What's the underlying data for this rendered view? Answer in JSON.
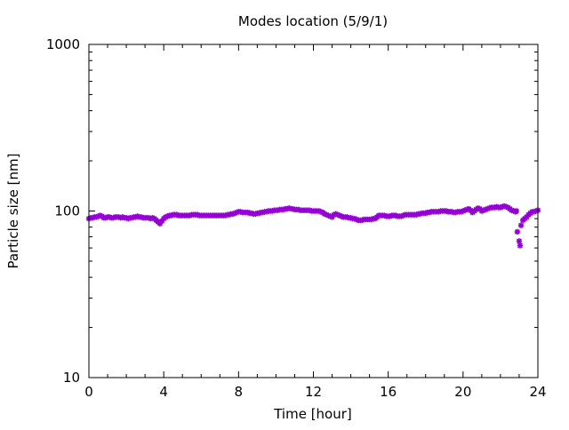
{
  "chart_data": {
    "type": "scatter",
    "title": "Modes location (5/9/1)",
    "xlabel": "Time [hour]",
    "ylabel": "Particle size [nm]",
    "xlim": [
      0,
      24
    ],
    "ylim": [
      10,
      1000
    ],
    "y_scale": "log",
    "x_ticks": [
      0,
      4,
      8,
      12,
      16,
      20,
      24
    ],
    "x_tick_labels": [
      "0",
      "4",
      "8",
      "12",
      "16",
      "20",
      "24"
    ],
    "y_ticks": [
      10,
      100,
      1000
    ],
    "y_tick_labels": [
      "10",
      "100",
      "1000"
    ],
    "grid": false,
    "legend": "none",
    "marker_color": "#9400d3",
    "series": [
      {
        "points": [
          [
            0.0,
            90
          ],
          [
            0.1,
            91
          ],
          [
            0.2,
            91
          ],
          [
            0.3,
            92
          ],
          [
            0.4,
            92
          ],
          [
            0.5,
            93
          ],
          [
            0.6,
            94
          ],
          [
            0.7,
            93
          ],
          [
            0.8,
            91
          ],
          [
            0.9,
            91
          ],
          [
            1.0,
            92
          ],
          [
            1.1,
            92
          ],
          [
            1.2,
            91
          ],
          [
            1.3,
            91
          ],
          [
            1.4,
            92
          ],
          [
            1.5,
            92
          ],
          [
            1.6,
            92
          ],
          [
            1.7,
            91
          ],
          [
            1.8,
            92
          ],
          [
            1.9,
            91
          ],
          [
            2.0,
            91
          ],
          [
            2.1,
            90
          ],
          [
            2.2,
            91
          ],
          [
            2.3,
            91
          ],
          [
            2.4,
            92
          ],
          [
            2.5,
            92
          ],
          [
            2.6,
            93
          ],
          [
            2.7,
            92
          ],
          [
            2.8,
            92
          ],
          [
            2.9,
            91
          ],
          [
            3.0,
            91
          ],
          [
            3.1,
            91
          ],
          [
            3.2,
            91
          ],
          [
            3.3,
            90
          ],
          [
            3.4,
            91
          ],
          [
            3.5,
            90
          ],
          [
            3.6,
            88
          ],
          [
            3.7,
            86
          ],
          [
            3.8,
            84
          ],
          [
            3.9,
            87
          ],
          [
            4.0,
            90
          ],
          [
            4.1,
            92
          ],
          [
            4.2,
            93
          ],
          [
            4.3,
            94
          ],
          [
            4.4,
            94
          ],
          [
            4.5,
            95
          ],
          [
            4.6,
            95
          ],
          [
            4.7,
            95
          ],
          [
            4.8,
            94
          ],
          [
            4.9,
            94
          ],
          [
            5.0,
            94
          ],
          [
            5.1,
            94
          ],
          [
            5.2,
            94
          ],
          [
            5.3,
            94
          ],
          [
            5.4,
            94
          ],
          [
            5.5,
            95
          ],
          [
            5.6,
            95
          ],
          [
            5.7,
            95
          ],
          [
            5.8,
            95
          ],
          [
            5.9,
            94
          ],
          [
            6.0,
            94
          ],
          [
            6.1,
            94
          ],
          [
            6.2,
            94
          ],
          [
            6.3,
            94
          ],
          [
            6.4,
            94
          ],
          [
            6.5,
            94
          ],
          [
            6.6,
            94
          ],
          [
            6.7,
            94
          ],
          [
            6.8,
            94
          ],
          [
            6.9,
            94
          ],
          [
            7.0,
            94
          ],
          [
            7.1,
            94
          ],
          [
            7.2,
            94
          ],
          [
            7.3,
            94
          ],
          [
            7.4,
            95
          ],
          [
            7.5,
            95
          ],
          [
            7.6,
            96
          ],
          [
            7.7,
            96
          ],
          [
            7.8,
            97
          ],
          [
            7.9,
            98
          ],
          [
            8.0,
            99
          ],
          [
            8.1,
            99
          ],
          [
            8.2,
            98
          ],
          [
            8.3,
            98
          ],
          [
            8.4,
            98
          ],
          [
            8.5,
            98
          ],
          [
            8.6,
            97
          ],
          [
            8.7,
            97
          ],
          [
            8.8,
            96
          ],
          [
            8.9,
            96
          ],
          [
            9.0,
            97
          ],
          [
            9.1,
            97
          ],
          [
            9.2,
            98
          ],
          [
            9.3,
            98
          ],
          [
            9.4,
            99
          ],
          [
            9.5,
            99
          ],
          [
            9.6,
            100
          ],
          [
            9.7,
            100
          ],
          [
            9.8,
            100
          ],
          [
            9.9,
            101
          ],
          [
            10.0,
            101
          ],
          [
            10.1,
            101
          ],
          [
            10.2,
            102
          ],
          [
            10.3,
            102
          ],
          [
            10.4,
            102
          ],
          [
            10.5,
            103
          ],
          [
            10.6,
            103
          ],
          [
            10.7,
            104
          ],
          [
            10.8,
            103
          ],
          [
            10.9,
            103
          ],
          [
            11.0,
            102
          ],
          [
            11.1,
            102
          ],
          [
            11.2,
            102
          ],
          [
            11.3,
            101
          ],
          [
            11.4,
            101
          ],
          [
            11.5,
            101
          ],
          [
            11.6,
            101
          ],
          [
            11.7,
            101
          ],
          [
            11.8,
            101
          ],
          [
            11.9,
            100
          ],
          [
            12.0,
            100
          ],
          [
            12.1,
            100
          ],
          [
            12.2,
            100
          ],
          [
            12.3,
            100
          ],
          [
            12.4,
            99
          ],
          [
            12.5,
            98
          ],
          [
            12.6,
            96
          ],
          [
            12.7,
            95
          ],
          [
            12.8,
            94
          ],
          [
            12.9,
            93
          ],
          [
            13.0,
            92
          ],
          [
            13.1,
            95
          ],
          [
            13.2,
            96
          ],
          [
            13.3,
            95
          ],
          [
            13.4,
            94
          ],
          [
            13.5,
            93
          ],
          [
            13.6,
            92
          ],
          [
            13.7,
            92
          ],
          [
            13.8,
            92
          ],
          [
            13.9,
            91
          ],
          [
            14.0,
            91
          ],
          [
            14.1,
            90
          ],
          [
            14.2,
            90
          ],
          [
            14.3,
            89
          ],
          [
            14.4,
            88
          ],
          [
            14.5,
            88
          ],
          [
            14.6,
            88
          ],
          [
            14.7,
            89
          ],
          [
            14.8,
            89
          ],
          [
            14.9,
            89
          ],
          [
            15.0,
            89
          ],
          [
            15.1,
            89
          ],
          [
            15.2,
            90
          ],
          [
            15.3,
            90
          ],
          [
            15.4,
            92
          ],
          [
            15.5,
            94
          ],
          [
            15.6,
            94
          ],
          [
            15.7,
            94
          ],
          [
            15.8,
            94
          ],
          [
            15.9,
            93
          ],
          [
            16.0,
            93
          ],
          [
            16.1,
            93
          ],
          [
            16.2,
            94
          ],
          [
            16.3,
            94
          ],
          [
            16.4,
            94
          ],
          [
            16.5,
            93
          ],
          [
            16.6,
            93
          ],
          [
            16.7,
            93
          ],
          [
            16.8,
            94
          ],
          [
            16.9,
            95
          ],
          [
            17.0,
            95
          ],
          [
            17.1,
            95
          ],
          [
            17.2,
            95
          ],
          [
            17.3,
            95
          ],
          [
            17.4,
            95
          ],
          [
            17.5,
            95
          ],
          [
            17.6,
            96
          ],
          [
            17.7,
            96
          ],
          [
            17.8,
            97
          ],
          [
            17.9,
            97
          ],
          [
            18.0,
            97
          ],
          [
            18.1,
            98
          ],
          [
            18.2,
            98
          ],
          [
            18.3,
            99
          ],
          [
            18.4,
            99
          ],
          [
            18.5,
            99
          ],
          [
            18.6,
            99
          ],
          [
            18.7,
            99
          ],
          [
            18.8,
            100
          ],
          [
            18.9,
            100
          ],
          [
            19.0,
            100
          ],
          [
            19.1,
            100
          ],
          [
            19.2,
            99
          ],
          [
            19.3,
            99
          ],
          [
            19.4,
            99
          ],
          [
            19.5,
            98
          ],
          [
            19.6,
            98
          ],
          [
            19.7,
            99
          ],
          [
            19.8,
            99
          ],
          [
            19.9,
            99
          ],
          [
            20.0,
            100
          ],
          [
            20.1,
            101
          ],
          [
            20.2,
            102
          ],
          [
            20.3,
            103
          ],
          [
            20.4,
            101
          ],
          [
            20.5,
            98
          ],
          [
            20.6,
            100
          ],
          [
            20.7,
            102
          ],
          [
            20.8,
            104
          ],
          [
            20.9,
            103
          ],
          [
            21.0,
            100
          ],
          [
            21.1,
            101
          ],
          [
            21.2,
            102
          ],
          [
            21.3,
            103
          ],
          [
            21.4,
            104
          ],
          [
            21.5,
            105
          ],
          [
            21.6,
            105
          ],
          [
            21.7,
            105
          ],
          [
            21.8,
            106
          ],
          [
            21.9,
            105
          ],
          [
            22.0,
            105
          ],
          [
            22.1,
            106
          ],
          [
            22.2,
            107
          ],
          [
            22.3,
            106
          ],
          [
            22.4,
            105
          ],
          [
            22.5,
            103
          ],
          [
            22.6,
            101
          ],
          [
            22.7,
            100
          ],
          [
            22.8,
            99
          ],
          [
            22.85,
            100
          ],
          [
            22.9,
            75
          ],
          [
            23.0,
            66
          ],
          [
            23.05,
            62
          ],
          [
            23.1,
            82
          ],
          [
            23.2,
            88
          ],
          [
            23.3,
            90
          ],
          [
            23.4,
            92
          ],
          [
            23.5,
            95
          ],
          [
            23.6,
            97
          ],
          [
            23.7,
            99
          ],
          [
            23.8,
            99
          ],
          [
            23.9,
            100
          ],
          [
            24.0,
            101
          ]
        ]
      }
    ]
  }
}
